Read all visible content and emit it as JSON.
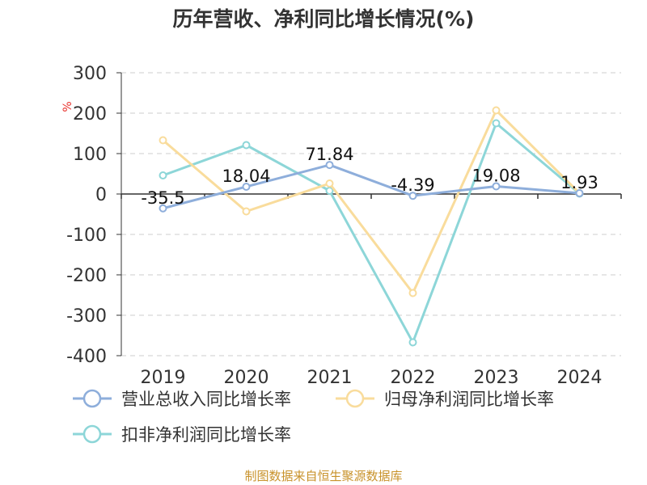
{
  "chart_data": {
    "type": "line",
    "title": "历年营收、净利同比增长情况(%)",
    "unit_label": "%",
    "categories": [
      "2019",
      "2020",
      "2021",
      "2022",
      "2023",
      "2024"
    ],
    "ylim": [
      -400,
      300
    ],
    "yticks": [
      300,
      200,
      100,
      0,
      -100,
      -200,
      -300,
      -400
    ],
    "grid": true,
    "legend_position": "bottom",
    "series": [
      {
        "name": "营业总收入同比增长率",
        "color": "#8eaedb",
        "values": [
          -35.5,
          18.04,
          71.84,
          -4.39,
          19.08,
          1.93
        ],
        "labels": [
          "-35.5",
          "18.04",
          "71.84",
          "-4.39",
          "19.08",
          "1.93"
        ]
      },
      {
        "name": "归母净利润同比增长率",
        "color": "#f9dc9c",
        "values": [
          133,
          -43,
          26,
          -245,
          207,
          2
        ]
      },
      {
        "name": "扣非净利润同比增长率",
        "color": "#8dd6d8",
        "values": [
          46,
          121,
          8,
          -367,
          175,
          1
        ]
      }
    ]
  },
  "source_note": "制图数据来自恒生聚源数据库"
}
